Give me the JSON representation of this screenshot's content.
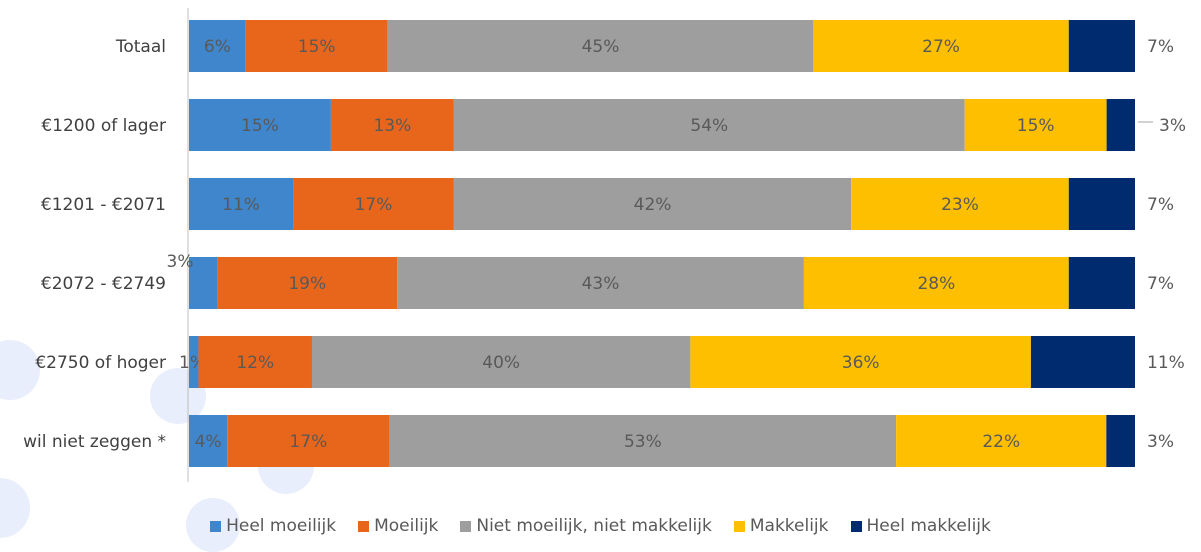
{
  "chart_data": {
    "type": "bar",
    "orientation": "horizontal",
    "stacked": true,
    "normalized": true,
    "categories": [
      "Totaal",
      "€1200 of lager",
      "€1201 - €2071",
      "€2072 - €2749",
      "€2750 of hoger",
      "wil niet zeggen *"
    ],
    "series": [
      {
        "name": "Heel moeilijk",
        "color": "#3f86cc",
        "values": [
          6,
          15,
          11,
          3,
          1,
          4
        ],
        "labels": [
          "6%",
          "15%",
          "11%",
          "3%",
          "1%",
          "4%"
        ]
      },
      {
        "name": "Moeilijk",
        "color": "#e8661b",
        "values": [
          15,
          13,
          17,
          19,
          12,
          17
        ],
        "labels": [
          "15%",
          "13%",
          "17%",
          "19%",
          "12%",
          "17%"
        ]
      },
      {
        "name": "Niet moeilijk, niet makkelijk",
        "color": "#9e9e9e",
        "values": [
          45,
          54,
          42,
          43,
          40,
          53
        ],
        "labels": [
          "45%",
          "54%",
          "42%",
          "43%",
          "40%",
          "53%"
        ]
      },
      {
        "name": "Makkelijk",
        "color": "#fdbf00",
        "values": [
          27,
          15,
          23,
          28,
          36,
          22
        ],
        "labels": [
          "27%",
          "15%",
          "23%",
          "28%",
          "36%",
          "22%"
        ]
      },
      {
        "name": "Heel makkelijk",
        "color": "#002b6e",
        "values": [
          7,
          3,
          7,
          7,
          11,
          3
        ],
        "labels": [
          "7%",
          "3%",
          "7%",
          "7%",
          "11%",
          "3%"
        ]
      }
    ],
    "legend_position": "bottom",
    "grid": false
  }
}
